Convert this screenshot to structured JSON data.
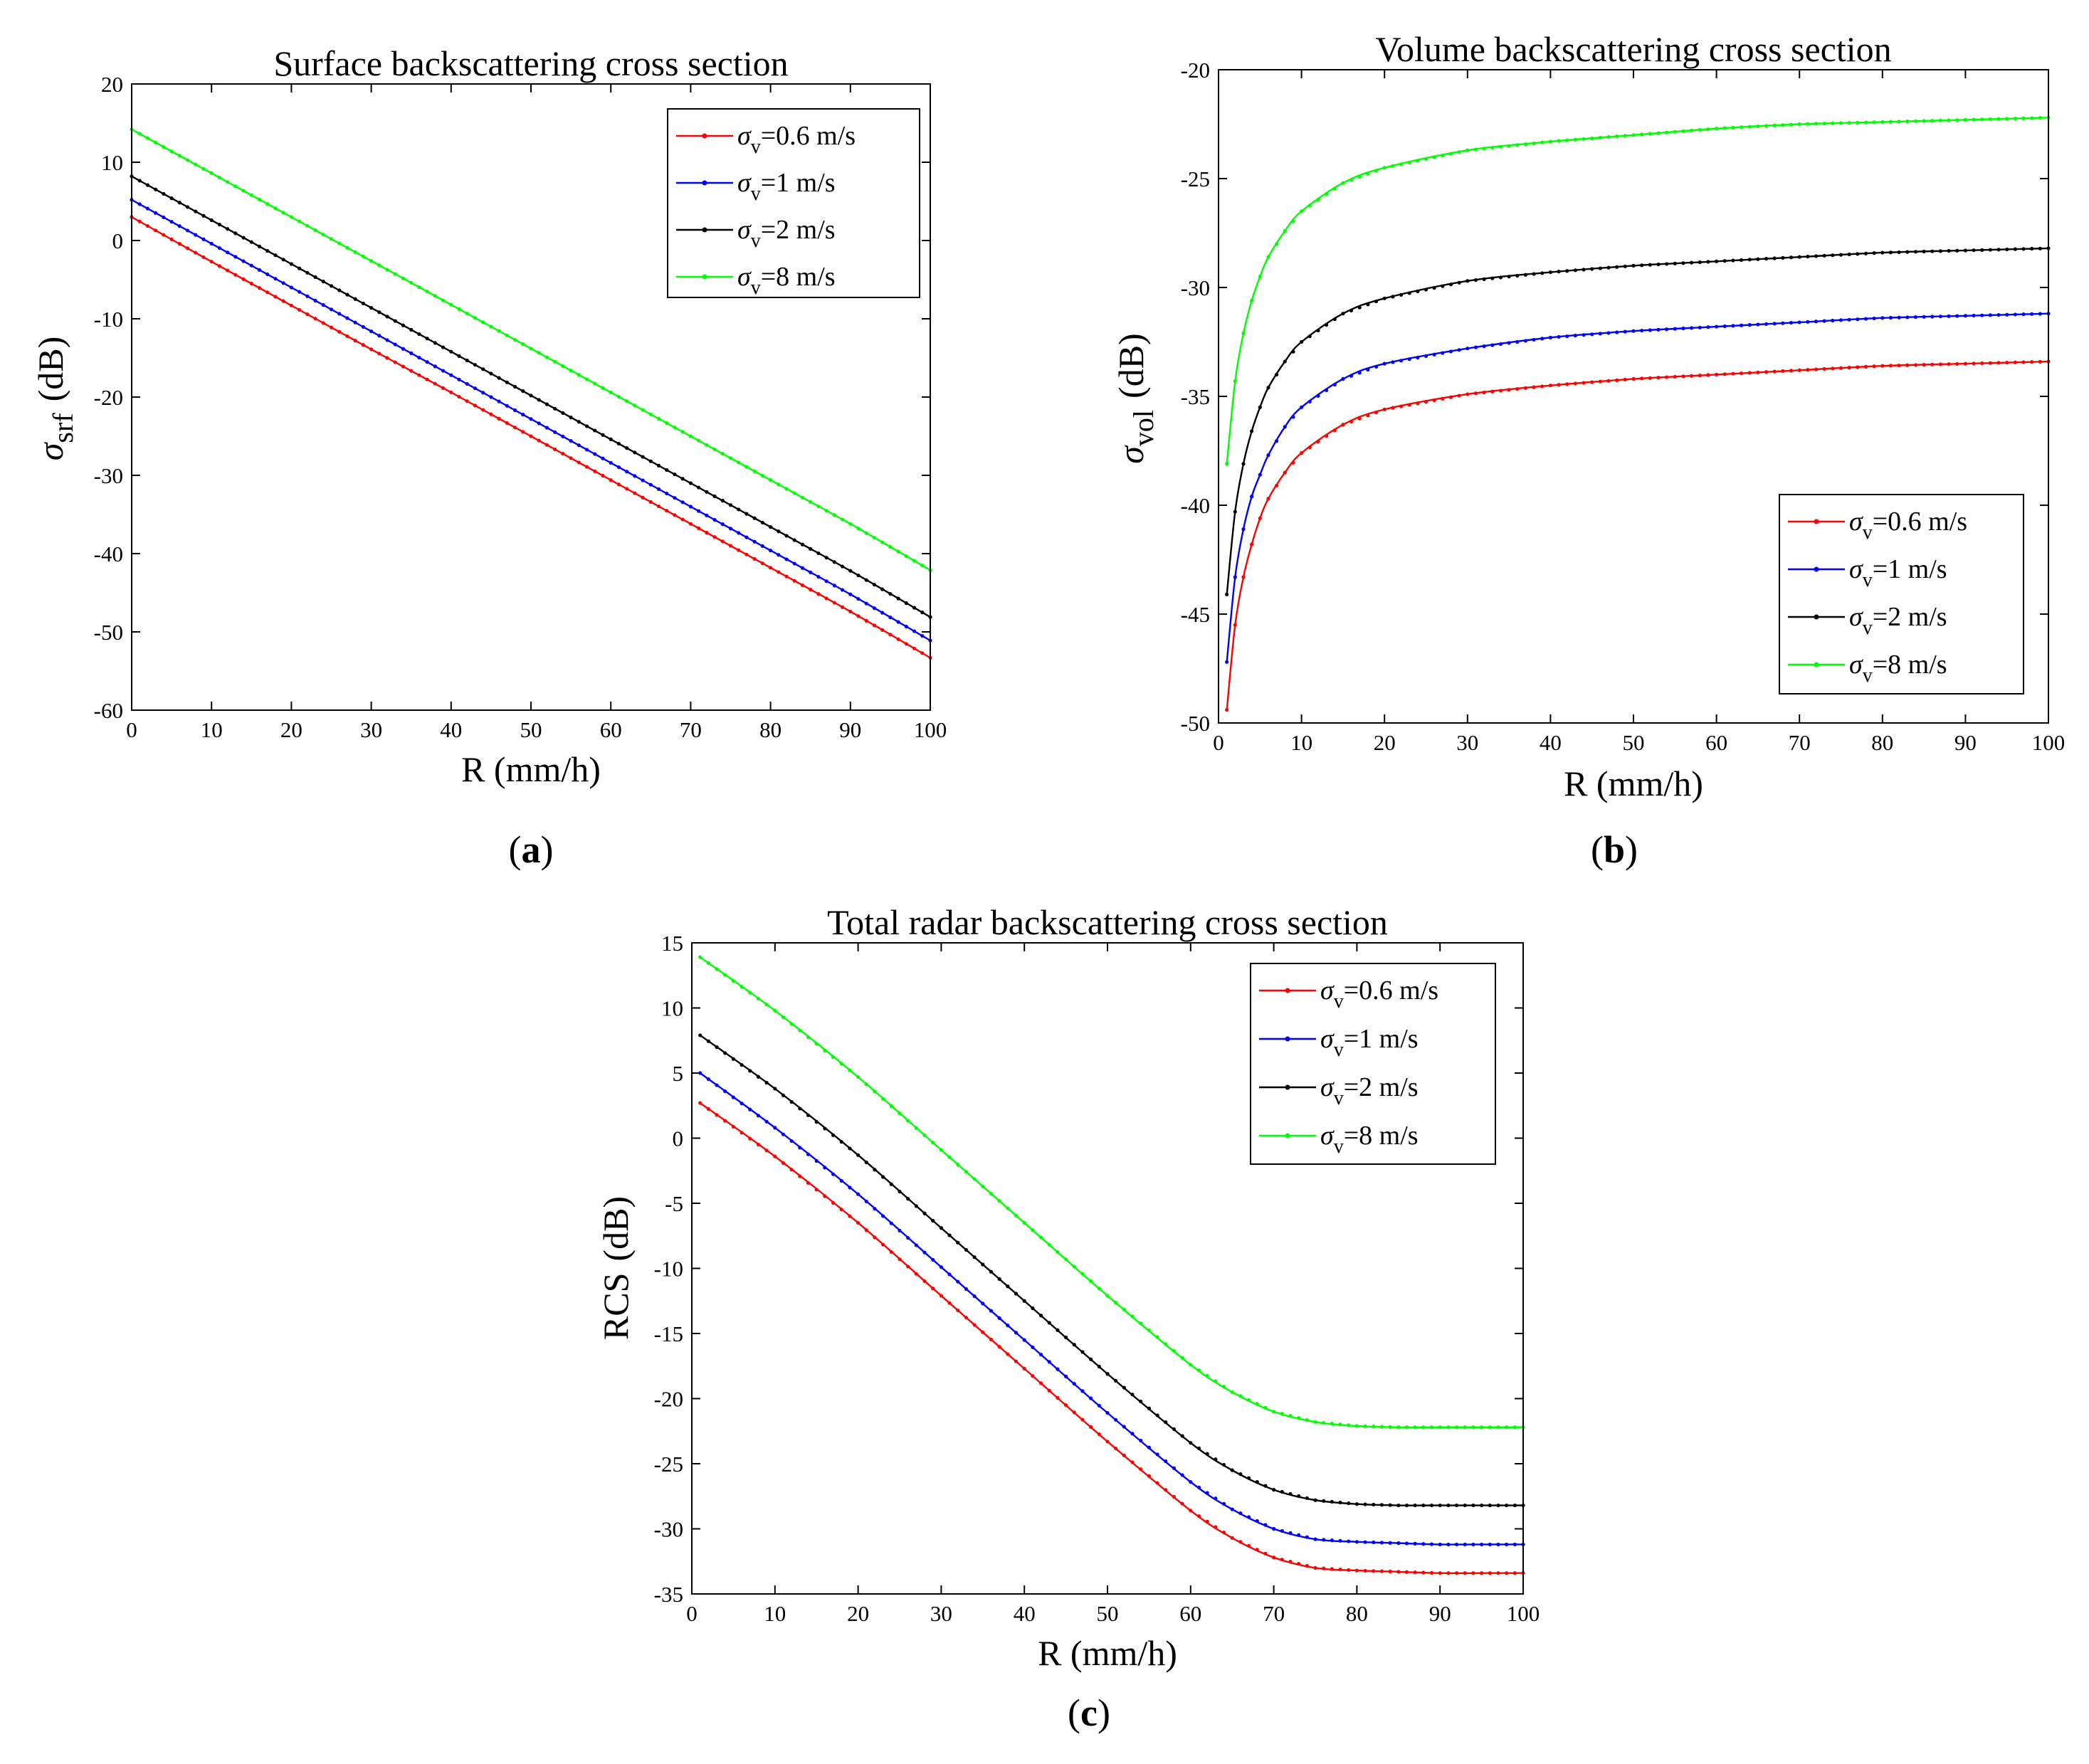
{
  "chart_data": [
    {
      "id": "a",
      "type": "line",
      "title": "Surface backscattering cross section",
      "xlabel": "R  (mm/h)",
      "ylabel": {
        "main": "σ",
        "sub": "srf",
        "unit": "(dB)"
      },
      "xlim": [
        0,
        100
      ],
      "ylim": [
        -60,
        20
      ],
      "xticks": [
        0,
        10,
        20,
        30,
        40,
        50,
        60,
        70,
        80,
        90,
        100
      ],
      "yticks": [
        -60,
        -50,
        -40,
        -30,
        -20,
        -10,
        0,
        10,
        20
      ],
      "caption": {
        "open": "(",
        "letter": "a",
        "close": ")"
      },
      "legend": {
        "location": "top-right"
      },
      "series": [
        {
          "name": "σv=0.6 m/s",
          "symbol": "σ",
          "sub": "v",
          "rest": "=0.6 m/s",
          "color": "#ff0000",
          "x": [
            0,
            10,
            20,
            30,
            40,
            50,
            60,
            70,
            80,
            90,
            100
          ],
          "values": [
            3.0,
            -2.7,
            -8.3,
            -13.9,
            -19.4,
            -25.0,
            -30.6,
            -36.2,
            -41.8,
            -47.4,
            -53.3
          ]
        },
        {
          "name": "σv=1 m/s",
          "symbol": "σ",
          "sub": "v",
          "rest": "=1 m/s",
          "color": "#0000ff",
          "x": [
            0,
            10,
            20,
            30,
            40,
            50,
            60,
            70,
            80,
            90,
            100
          ],
          "values": [
            5.2,
            -0.4,
            -6.0,
            -11.6,
            -17.2,
            -22.8,
            -28.4,
            -34.0,
            -39.6,
            -45.2,
            -51.1
          ]
        },
        {
          "name": "σv=2 m/s",
          "symbol": "σ",
          "sub": "v",
          "rest": "=2 m/s",
          "color": "#000000",
          "x": [
            0,
            10,
            20,
            30,
            40,
            50,
            60,
            70,
            80,
            90,
            100
          ],
          "values": [
            8.2,
            2.6,
            -3.0,
            -8.6,
            -14.2,
            -19.8,
            -25.4,
            -31.0,
            -36.6,
            -42.2,
            -48.1
          ]
        },
        {
          "name": "σv=8 m/s",
          "symbol": "σ",
          "sub": "v",
          "rest": "=8 m/s",
          "color": "#00ff00",
          "x": [
            0,
            10,
            20,
            30,
            40,
            50,
            60,
            70,
            80,
            90,
            100
          ],
          "values": [
            14.2,
            8.6,
            3.0,
            -2.6,
            -8.2,
            -13.8,
            -19.4,
            -25.0,
            -30.6,
            -36.2,
            -42.1
          ]
        }
      ]
    },
    {
      "id": "b",
      "type": "line",
      "title": "Volume backscattering cross section",
      "xlabel": "R  (mm/h)",
      "ylabel": {
        "main": "σ",
        "sub": "vol",
        "unit": "(dB)"
      },
      "xlim": [
        0,
        100
      ],
      "ylim": [
        -50,
        -20
      ],
      "xticks": [
        0,
        10,
        20,
        30,
        40,
        50,
        60,
        70,
        80,
        90,
        100
      ],
      "yticks": [
        -50,
        -45,
        -40,
        -35,
        -30,
        -25,
        -20
      ],
      "caption": {
        "open": "(",
        "letter": "b",
        "close": ")"
      },
      "legend": {
        "location": "bottom-right"
      },
      "series": [
        {
          "name": "σv=0.6 m/s",
          "symbol": "σ",
          "sub": "v",
          "rest": "=0.6 m/s",
          "color": "#ff0000",
          "x": [
            1,
            2,
            3,
            4,
            5,
            6,
            8,
            10,
            15,
            20,
            30,
            40,
            50,
            60,
            70,
            80,
            90,
            100
          ],
          "values": [
            -49.4,
            -45.5,
            -43.3,
            -41.8,
            -40.6,
            -39.7,
            -38.5,
            -37.6,
            -36.3,
            -35.6,
            -34.9,
            -34.5,
            -34.2,
            -34.0,
            -33.8,
            -33.6,
            -33.5,
            -33.4
          ]
        },
        {
          "name": "σv=1 m/s",
          "symbol": "σ",
          "sub": "v",
          "rest": "=1 m/s",
          "color": "#0000ff",
          "x": [
            1,
            2,
            3,
            4,
            5,
            6,
            8,
            10,
            15,
            20,
            30,
            40,
            50,
            60,
            70,
            80,
            90,
            100
          ],
          "values": [
            -47.2,
            -43.3,
            -41.1,
            -39.6,
            -38.6,
            -37.7,
            -36.4,
            -35.5,
            -34.2,
            -33.5,
            -32.8,
            -32.3,
            -32.0,
            -31.8,
            -31.6,
            -31.4,
            -31.3,
            -31.2
          ]
        },
        {
          "name": "σv=2 m/s",
          "symbol": "σ",
          "sub": "v",
          "rest": "=2 m/s",
          "color": "#000000",
          "x": [
            1,
            2,
            3,
            4,
            5,
            6,
            8,
            10,
            15,
            20,
            30,
            40,
            50,
            60,
            70,
            80,
            90,
            100
          ],
          "values": [
            -44.1,
            -40.3,
            -38.1,
            -36.6,
            -35.5,
            -34.6,
            -33.4,
            -32.5,
            -31.2,
            -30.5,
            -29.7,
            -29.3,
            -29.0,
            -28.8,
            -28.6,
            -28.4,
            -28.3,
            -28.2
          ]
        },
        {
          "name": "σv=8 m/s",
          "symbol": "σ",
          "sub": "v",
          "rest": "=8 m/s",
          "color": "#00ff00",
          "x": [
            1,
            2,
            3,
            4,
            5,
            6,
            8,
            10,
            15,
            20,
            30,
            40,
            50,
            60,
            70,
            80,
            90,
            100
          ],
          "values": [
            -38.1,
            -34.3,
            -32.1,
            -30.6,
            -29.5,
            -28.6,
            -27.4,
            -26.5,
            -25.2,
            -24.5,
            -23.7,
            -23.3,
            -23.0,
            -22.7,
            -22.5,
            -22.4,
            -22.3,
            -22.2
          ]
        }
      ]
    },
    {
      "id": "c",
      "type": "line",
      "title": "Total radar backscattering cross section",
      "xlabel": "R  (mm/h)",
      "ylabel": {
        "main": "RCS",
        "sub": "",
        "unit": "(dB)"
      },
      "xlim": [
        0,
        100
      ],
      "ylim": [
        -35,
        15
      ],
      "xticks": [
        0,
        10,
        20,
        30,
        40,
        50,
        60,
        70,
        80,
        90,
        100
      ],
      "yticks": [
        -35,
        -30,
        -25,
        -20,
        -15,
        -10,
        -5,
        0,
        5,
        10,
        15
      ],
      "caption": {
        "open": "(",
        "letter": "c",
        "close": ")"
      },
      "legend": {
        "location": "top-right"
      },
      "series": [
        {
          "name": "σv=0.6 m/s",
          "symbol": "σ",
          "sub": "v",
          "rest": "=0.6 m/s",
          "color": "#ff0000",
          "x": [
            1,
            10,
            20,
            30,
            40,
            50,
            60,
            65,
            70,
            75,
            80,
            85,
            90,
            95,
            100
          ],
          "values": [
            2.7,
            -1.4,
            -6.5,
            -12.1,
            -17.7,
            -23.3,
            -28.6,
            -30.7,
            -32.2,
            -33.0,
            -33.2,
            -33.3,
            -33.4,
            -33.4,
            -33.4
          ]
        },
        {
          "name": "σv=1 m/s",
          "symbol": "σ",
          "sub": "v",
          "rest": "=1 m/s",
          "color": "#0000ff",
          "x": [
            1,
            10,
            20,
            30,
            40,
            50,
            60,
            65,
            70,
            75,
            80,
            85,
            90,
            95,
            100
          ],
          "values": [
            5.0,
            0.8,
            -4.3,
            -9.9,
            -15.5,
            -21.1,
            -26.4,
            -28.5,
            -30.0,
            -30.8,
            -31.0,
            -31.1,
            -31.2,
            -31.2,
            -31.2
          ]
        },
        {
          "name": "σv=2 m/s",
          "symbol": "σ",
          "sub": "v",
          "rest": "=2 m/s",
          "color": "#000000",
          "x": [
            1,
            10,
            20,
            30,
            40,
            50,
            60,
            65,
            70,
            75,
            80,
            85,
            90,
            95,
            100
          ],
          "values": [
            7.9,
            3.8,
            -1.3,
            -6.9,
            -12.5,
            -18.1,
            -23.4,
            -25.5,
            -27.0,
            -27.8,
            -28.1,
            -28.2,
            -28.2,
            -28.2,
            -28.2
          ]
        },
        {
          "name": "σv=8 m/s",
          "symbol": "σ",
          "sub": "v",
          "rest": "=8 m/s",
          "color": "#00ff00",
          "x": [
            1,
            10,
            20,
            30,
            40,
            50,
            60,
            65,
            70,
            75,
            80,
            85,
            90,
            95,
            100
          ],
          "values": [
            13.9,
            9.8,
            4.7,
            -0.9,
            -6.5,
            -12.1,
            -17.4,
            -19.5,
            -21.0,
            -21.8,
            -22.1,
            -22.2,
            -22.2,
            -22.2,
            -22.2
          ]
        }
      ]
    }
  ]
}
